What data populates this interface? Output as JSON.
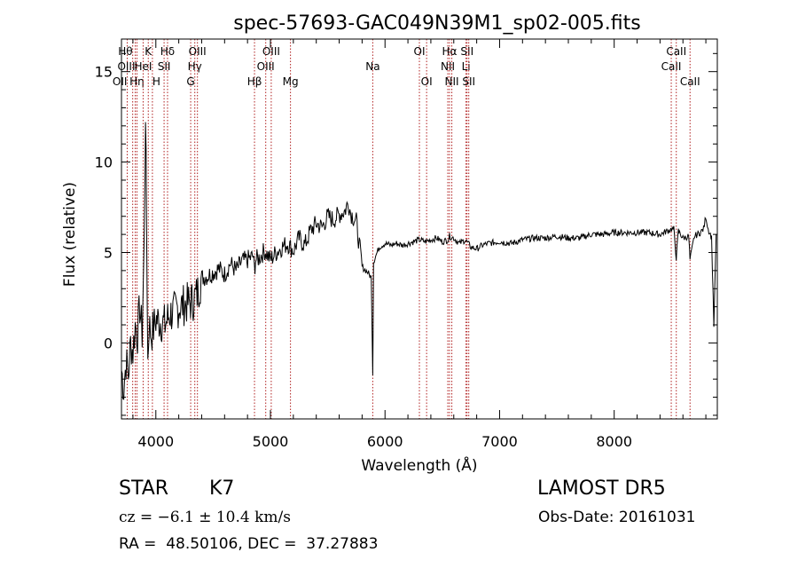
{
  "chart_data": {
    "type": "line",
    "title": "spec-57693-GAC049N39M1_sp02-005.fits",
    "xlabel": "Wavelength (Å)",
    "ylabel": "Flux (relative)",
    "xlim": [
      3700,
      8900
    ],
    "ylim": [
      -4.2,
      16.8
    ],
    "xticks": [
      4000,
      5000,
      6000,
      7000,
      8000
    ],
    "yticks": [
      0,
      5,
      10,
      15
    ],
    "series": [
      {
        "x": [
          3700,
          3720,
          3740,
          3760,
          3780,
          3800,
          3820,
          3840,
          3860,
          3880,
          3900,
          3910,
          3920,
          3930,
          3940,
          3960,
          3980,
          4000,
          4040,
          4080,
          4120,
          4160,
          4200,
          4240,
          4280,
          4320,
          4360,
          4400,
          4450,
          4500,
          4550,
          4600,
          4650,
          4700,
          4750,
          4800,
          4850,
          4861,
          4870,
          4900,
          4950,
          5000,
          5050,
          5100,
          5150,
          5200,
          5250,
          5300,
          5350,
          5400,
          5450,
          5500,
          5550,
          5600,
          5650,
          5680,
          5700,
          5750,
          5800,
          5850,
          5880,
          5893,
          5900,
          5950,
          6000,
          6050,
          6100,
          6150,
          6200,
          6250,
          6300,
          6350,
          6400,
          6450,
          6500,
          6550,
          6563,
          6600,
          6650,
          6700,
          6750,
          6800,
          6850,
          6900,
          7000,
          7100,
          7200,
          7300,
          7400,
          7500,
          7600,
          7700,
          7800,
          7900,
          8000,
          8100,
          8200,
          8300,
          8400,
          8500,
          8520,
          8542,
          8560,
          8600,
          8650,
          8662,
          8700,
          8750,
          8780,
          8800,
          8820,
          8840,
          8850,
          8870,
          8890
        ],
        "y": [
          -1.5,
          -2.5,
          -1.0,
          -1.8,
          0.0,
          -0.5,
          1.0,
          0.5,
          2.0,
          0.5,
          6.0,
          13.0,
          6.0,
          -1.0,
          1.0,
          0.5,
          0.8,
          1.3,
          1.2,
          1.0,
          1.6,
          1.7,
          2.0,
          2.1,
          2.2,
          2.3,
          2.7,
          3.6,
          3.7,
          3.9,
          4.1,
          3.8,
          4.4,
          4.0,
          4.5,
          4.6,
          4.8,
          4.0,
          4.6,
          4.7,
          5.1,
          4.6,
          5.0,
          5.3,
          5.5,
          5.1,
          5.8,
          5.4,
          6.2,
          6.6,
          6.4,
          7.0,
          6.8,
          7.1,
          7.3,
          7.8,
          7.2,
          6.7,
          4.2,
          3.9,
          3.6,
          -1.7,
          4.5,
          5.3,
          5.5,
          5.4,
          5.5,
          5.4,
          5.5,
          5.6,
          5.7,
          5.6,
          5.7,
          5.8,
          5.6,
          5.7,
          5.9,
          5.8,
          5.5,
          5.7,
          5.3,
          5.2,
          5.4,
          5.5,
          5.6,
          5.5,
          5.7,
          5.8,
          5.8,
          5.9,
          5.8,
          5.8,
          6.0,
          6.0,
          6.1,
          6.1,
          6.1,
          6.1,
          6.0,
          6.3,
          6.3,
          4.7,
          6.2,
          5.8,
          5.9,
          4.6,
          5.9,
          6.1,
          6.3,
          7.0,
          6.3,
          6.0,
          5.8,
          1.0,
          6.0
        ]
      }
    ],
    "lines": [
      {
        "wl": 3750,
        "label": "OII",
        "row": 3,
        "anchor": "end"
      },
      {
        "wl": 3798,
        "label": "Hθ",
        "row": 1,
        "anchor": "end"
      },
      {
        "wl": 3820,
        "label": "OIII",
        "row": 2,
        "anchor": "end"
      },
      {
        "wl": 3835,
        "label": "Hη",
        "row": 3,
        "anchor": "middle"
      },
      {
        "wl": 3889,
        "label": "HeI",
        "row": 2,
        "anchor": "middle"
      },
      {
        "wl": 3934,
        "label": "K",
        "row": 1,
        "anchor": "middle"
      },
      {
        "wl": 3970,
        "label": "H",
        "row": 3,
        "anchor": "start"
      },
      {
        "wl": 4072,
        "label": "SII",
        "row": 2,
        "anchor": "middle"
      },
      {
        "wl": 4102,
        "label": "Hδ",
        "row": 1,
        "anchor": "middle"
      },
      {
        "wl": 4304,
        "label": "G",
        "row": 3,
        "anchor": "middle"
      },
      {
        "wl": 4340,
        "label": "Hγ",
        "row": 2,
        "anchor": "middle"
      },
      {
        "wl": 4363,
        "label": "OIII",
        "row": 1,
        "anchor": "middle"
      },
      {
        "wl": 4861,
        "label": "Hβ",
        "row": 3,
        "anchor": "middle"
      },
      {
        "wl": 4959,
        "label": "OIII",
        "row": 2,
        "anchor": "middle"
      },
      {
        "wl": 5007,
        "label": "OIII",
        "row": 1,
        "anchor": "middle"
      },
      {
        "wl": 5175,
        "label": "Mg",
        "row": 3,
        "anchor": "middle"
      },
      {
        "wl": 5893,
        "label": "Na",
        "row": 2,
        "anchor": "middle"
      },
      {
        "wl": 6300,
        "label": "OI",
        "row": 1,
        "anchor": "middle"
      },
      {
        "wl": 6363,
        "label": "OI",
        "row": 3,
        "anchor": "middle"
      },
      {
        "wl": 6548,
        "label": "NII",
        "row": 2,
        "anchor": "middle"
      },
      {
        "wl": 6563,
        "label": "Hα",
        "row": 1,
        "anchor": "middle"
      },
      {
        "wl": 6583,
        "label": "NII",
        "row": 3,
        "anchor": "middle"
      },
      {
        "wl": 6707,
        "label": "Li",
        "row": 2,
        "anchor": "middle"
      },
      {
        "wl": 6716,
        "label": "SII",
        "row": 1,
        "anchor": "middle"
      },
      {
        "wl": 6731,
        "label": "SII",
        "row": 3,
        "anchor": "middle"
      },
      {
        "wl": 8498,
        "label": "CaII",
        "row": 2,
        "anchor": "middle"
      },
      {
        "wl": 8542,
        "label": "CaII",
        "row": 1,
        "anchor": "middle"
      },
      {
        "wl": 8662,
        "label": "CaII",
        "row": 3,
        "anchor": "middle"
      }
    ],
    "grid": false,
    "colors": {
      "spectrum": "#000000",
      "lines": "#b02020",
      "frame": "#000000"
    }
  },
  "footer": {
    "obj_class": "STAR",
    "obj_subclass": "K7",
    "survey": "LAMOST DR5",
    "cz": "cz = −6.1 ± 10.4 km/s",
    "obs_date": "Obs-Date: 20161031",
    "radec": "RA =  48.50106, DEC =  37.27883"
  }
}
